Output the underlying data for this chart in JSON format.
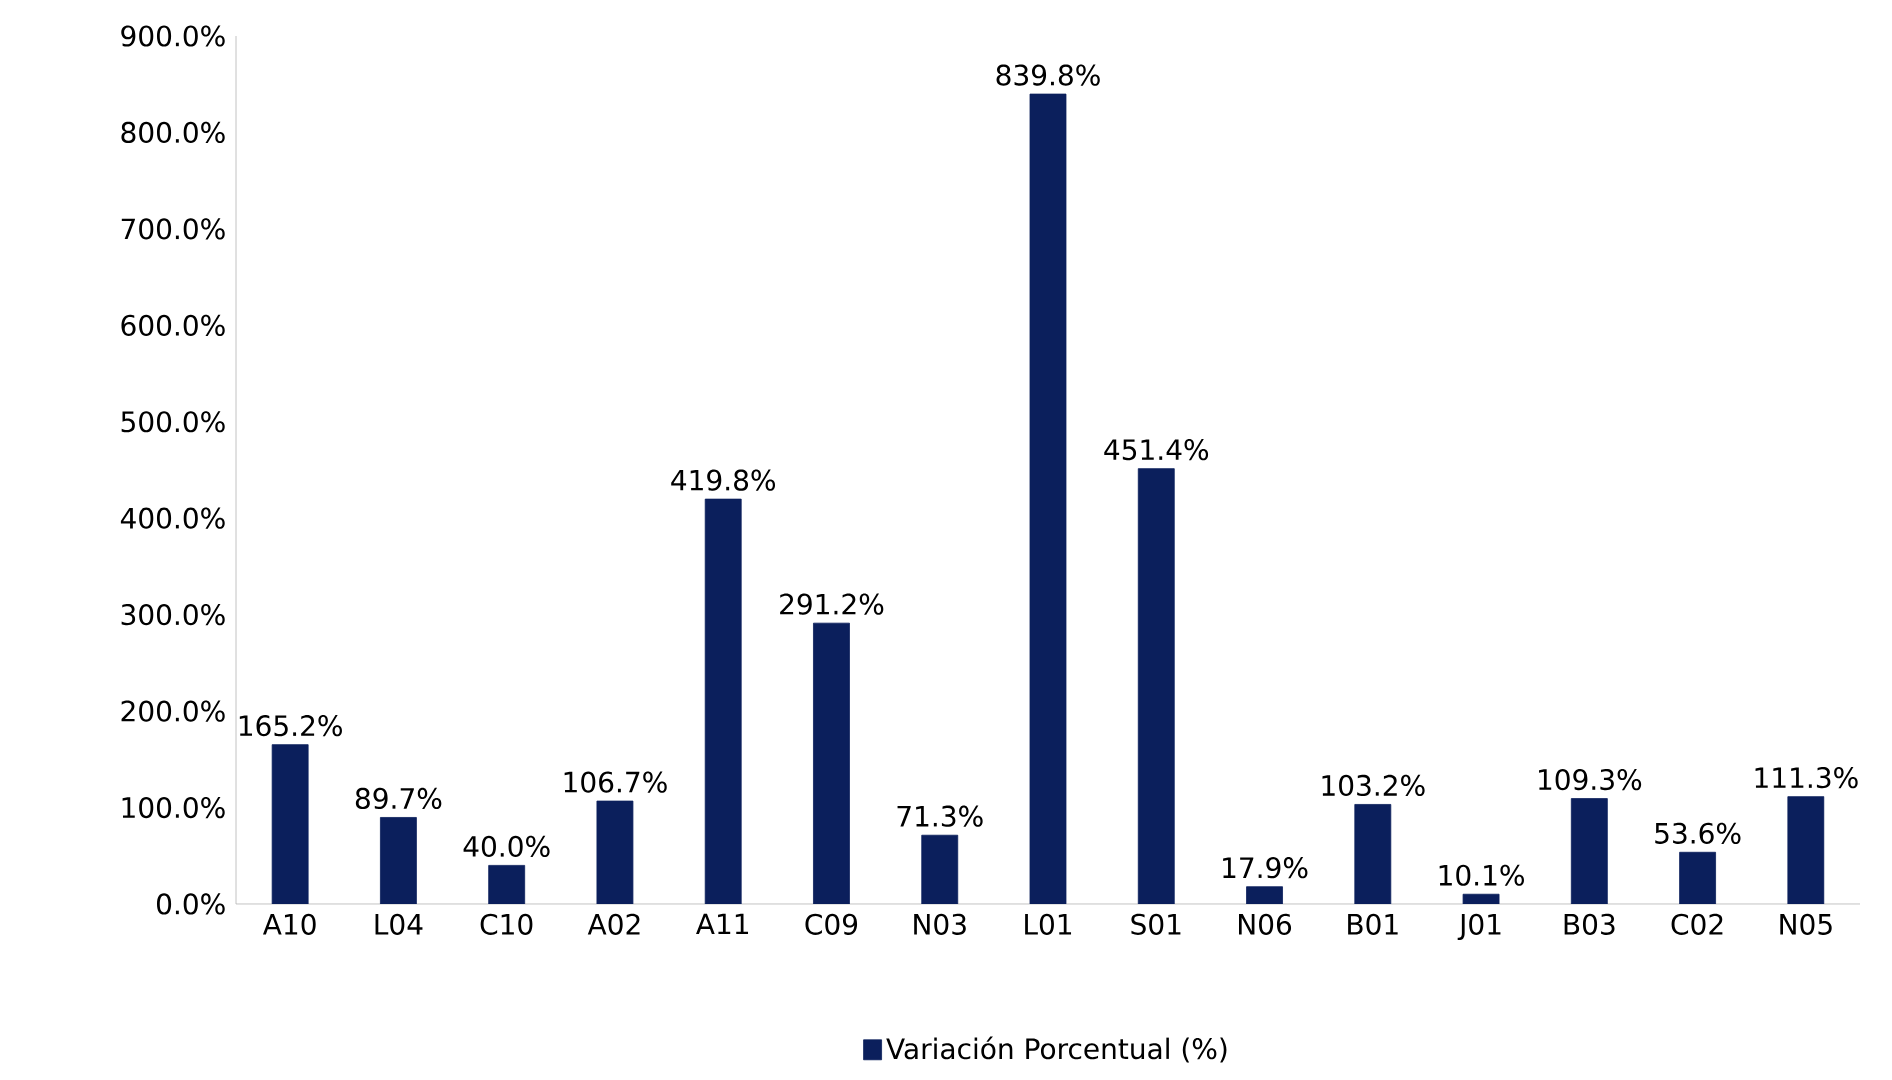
{
  "chart_data": {
    "type": "bar",
    "categories": [
      "A10",
      "L04",
      "C10",
      "A02",
      "A11",
      "C09",
      "N03",
      "L01",
      "S01",
      "N06",
      "B01",
      "J01",
      "B03",
      "C02",
      "N05"
    ],
    "series": [
      {
        "name": "Variación Porcentual (%)",
        "color": "#0b1f5c",
        "values": [
          165.2,
          89.7,
          40.0,
          106.7,
          419.8,
          291.2,
          71.3,
          839.8,
          451.4,
          17.9,
          103.2,
          10.1,
          109.3,
          53.6,
          111.3
        ],
        "value_labels": [
          "165.2%",
          "89.7%",
          "40.0%",
          "106.7%",
          "419.8%",
          "291.2%",
          "71.3%",
          "839.8%",
          "451.4%",
          "17.9%",
          "103.2%",
          "10.1%",
          "109.3%",
          "53.6%",
          "111.3%"
        ]
      }
    ],
    "ylim": [
      0,
      900
    ],
    "yticks": [
      {
        "value": 0,
        "label": "0.0%"
      },
      {
        "value": 100,
        "label": "100.0%"
      },
      {
        "value": 200,
        "label": "200.0%"
      },
      {
        "value": 300,
        "label": "300.0%"
      },
      {
        "value": 400,
        "label": "400.0%"
      },
      {
        "value": 500,
        "label": "500.0%"
      },
      {
        "value": 600,
        "label": "600.0%"
      },
      {
        "value": 700,
        "label": "700.0%"
      },
      {
        "value": 800,
        "label": "800.0%"
      },
      {
        "value": 900,
        "label": "900.0%"
      }
    ],
    "grid": false,
    "legend": "bottom"
  }
}
